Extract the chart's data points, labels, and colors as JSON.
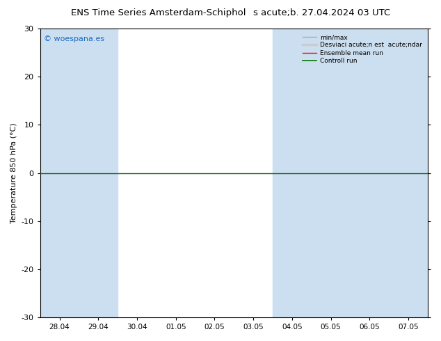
{
  "title": "ENS Time Series Amsterdam-Schiphol",
  "title2": "s acute;b. 27.04.2024 03 UTC",
  "ylabel": "Temperature 850 hPa (°C)",
  "ylim": [
    -30,
    30
  ],
  "yticks": [
    -30,
    -20,
    -10,
    0,
    10,
    20,
    30
  ],
  "x_labels": [
    "28.04",
    "29.04",
    "30.04",
    "01.05",
    "02.05",
    "03.05",
    "04.05",
    "05.05",
    "06.05",
    "07.05"
  ],
  "bg_color": "#ffffff",
  "plot_bg_color": "#ffffff",
  "band_color": "#ccdff0",
  "shaded_indices": [
    0,
    1,
    6,
    7,
    8,
    9
  ],
  "legend_entry0": "min/max",
  "legend_entry1": "Desviaci acute;n est  acute;ndar",
  "legend_entry2": "Ensemble mean run",
  "legend_entry3": "Controll run",
  "watermark": "© woespana.es",
  "zero_line_color": "#1a5c1a",
  "spine_color": "#000000"
}
